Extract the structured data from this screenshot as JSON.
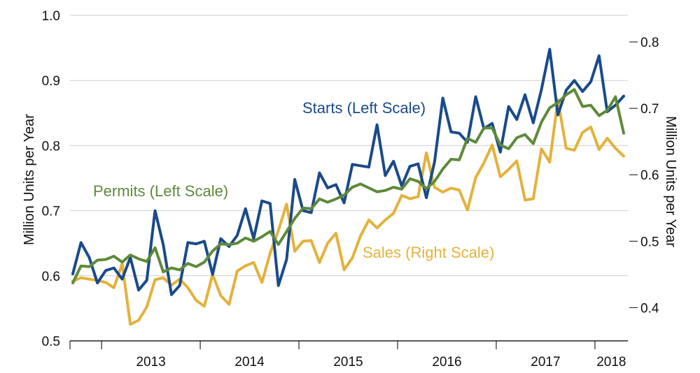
{
  "chart_data": {
    "type": "line",
    "title": "",
    "x_start": "2012-09",
    "x_frequency": "monthly",
    "x_tick_labels": [
      "2013",
      "2014",
      "2015",
      "2016",
      "2017",
      "2018"
    ],
    "y_left": {
      "label": "Million Units  per Year",
      "range": [
        0.5,
        1.0
      ],
      "ticks": [
        "0.5",
        "0.6",
        "0.7",
        "0.8",
        "0.9",
        "1.0"
      ]
    },
    "y_right": {
      "label": "Million Units  per Year",
      "range": [
        0.35,
        0.84
      ],
      "ticks": [
        "0.4",
        "0.5",
        "0.6",
        "0.7",
        "0.8"
      ]
    },
    "grid": true,
    "series": [
      {
        "name": "Starts (Left Scale)",
        "axis": "left",
        "color": "#1a4a8a",
        "values": [
          0.603,
          0.651,
          0.628,
          0.589,
          0.608,
          0.612,
          0.595,
          0.628,
          0.578,
          0.593,
          0.7,
          0.648,
          0.571,
          0.585,
          0.651,
          0.649,
          0.653,
          0.602,
          0.657,
          0.645,
          0.662,
          0.703,
          0.657,
          0.715,
          0.711,
          0.585,
          0.625,
          0.748,
          0.7,
          0.697,
          0.758,
          0.735,
          0.74,
          0.712,
          0.771,
          0.769,
          0.767,
          0.832,
          0.754,
          0.776,
          0.738,
          0.768,
          0.772,
          0.72,
          0.775,
          0.873,
          0.821,
          0.819,
          0.805,
          0.875,
          0.826,
          0.834,
          0.79,
          0.86,
          0.84,
          0.878,
          0.835,
          0.886,
          0.948,
          0.847,
          0.885,
          0.9,
          0.883,
          0.898,
          0.938,
          0.852,
          0.862,
          0.876
        ]
      },
      {
        "name": "Permits (Left Scale)",
        "axis": "left",
        "color": "#5e8a3a",
        "values": [
          0.589,
          0.615,
          0.614,
          0.624,
          0.625,
          0.63,
          0.621,
          0.632,
          0.626,
          0.622,
          0.643,
          0.606,
          0.612,
          0.609,
          0.619,
          0.614,
          0.621,
          0.638,
          0.649,
          0.648,
          0.65,
          0.658,
          0.653,
          0.66,
          0.668,
          0.648,
          0.668,
          0.688,
          0.704,
          0.703,
          0.718,
          0.713,
          0.718,
          0.724,
          0.736,
          0.741,
          0.735,
          0.729,
          0.731,
          0.736,
          0.733,
          0.749,
          0.745,
          0.734,
          0.745,
          0.764,
          0.779,
          0.778,
          0.811,
          0.805,
          0.827,
          0.827,
          0.801,
          0.795,
          0.812,
          0.817,
          0.803,
          0.836,
          0.858,
          0.866,
          0.878,
          0.886,
          0.86,
          0.862,
          0.846,
          0.854,
          0.875,
          0.819
        ]
      },
      {
        "name": "Sales (Right Scale)",
        "axis": "right",
        "color": "#e3b23c",
        "values": [
          0.44,
          0.445,
          0.443,
          0.441,
          0.438,
          0.43,
          0.466,
          0.375,
          0.381,
          0.401,
          0.442,
          0.445,
          0.434,
          0.443,
          0.43,
          0.411,
          0.402,
          0.45,
          0.418,
          0.405,
          0.455,
          0.463,
          0.468,
          0.438,
          0.482,
          0.516,
          0.556,
          0.485,
          0.5,
          0.501,
          0.468,
          0.497,
          0.512,
          0.457,
          0.475,
          0.508,
          0.532,
          0.52,
          0.532,
          0.542,
          0.569,
          0.564,
          0.567,
          0.633,
          0.581,
          0.574,
          0.58,
          0.577,
          0.547,
          0.596,
          0.618,
          0.645,
          0.597,
          0.608,
          0.621,
          0.562,
          0.564,
          0.639,
          0.619,
          0.713,
          0.64,
          0.637,
          0.664,
          0.672,
          0.638,
          0.655,
          0.64,
          0.628
        ]
      }
    ]
  }
}
